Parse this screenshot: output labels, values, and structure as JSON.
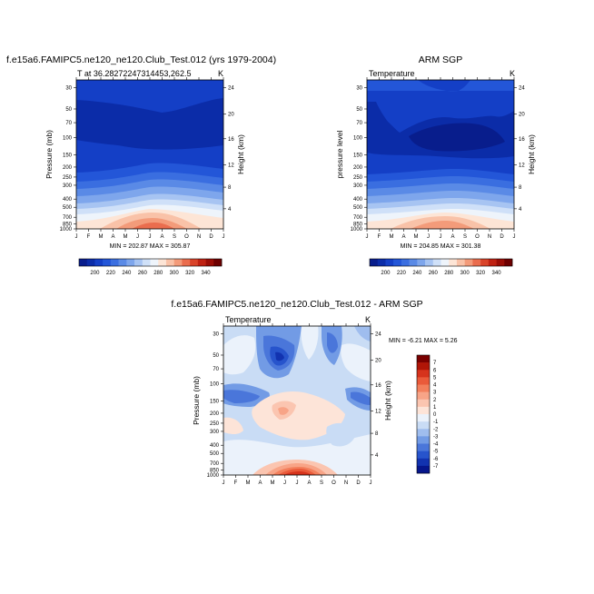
{
  "chart_data": [
    {
      "type": "heatmap",
      "title": "f.e15a6.FAMIPC5.ne120_ne120.Club_Test.012 (yrs 1979-2004)",
      "subtitle_left": "T at 36.28272247314453,262.5",
      "subtitle_right": "K",
      "xlabel": "",
      "ylabel": "Pressure (mb)",
      "ylabel_right": "Height (km)",
      "months": [
        "J",
        "F",
        "M",
        "A",
        "M",
        "J",
        "J",
        "A",
        "S",
        "O",
        "N",
        "D",
        "J"
      ],
      "pressure_ticks": [
        "30",
        "50",
        "70",
        "100",
        "150",
        "200",
        "250",
        "300",
        "400",
        "500",
        "700",
        "850",
        "1000"
      ],
      "height_ticks": [
        "24",
        "20",
        "16",
        "12",
        "8",
        "4"
      ],
      "stats": "MIN = 202.87 MAX = 305.87",
      "min": 202.87,
      "max": 305.87
    },
    {
      "type": "heatmap",
      "title": "ARM SGP",
      "subtitle_left": "Temperature",
      "subtitle_right": "K",
      "xlabel": "",
      "ylabel": "pressure level",
      "ylabel_right": "Height (km)",
      "months": [
        "J",
        "F",
        "M",
        "A",
        "M",
        "J",
        "J",
        "A",
        "S",
        "O",
        "N",
        "D",
        "J"
      ],
      "pressure_ticks": [
        "30",
        "50",
        "70",
        "100",
        "150",
        "200",
        "250",
        "300",
        "400",
        "500",
        "700",
        "850",
        "1000"
      ],
      "height_ticks": [
        "24",
        "20",
        "16",
        "12",
        "8",
        "4"
      ],
      "stats": "MIN = 204.85 MAX = 301.38",
      "min": 204.85,
      "max": 301.38
    },
    {
      "type": "heatmap",
      "title": "f.e15a6.FAMIPC5.ne120_ne120.Club_Test.012 - ARM SGP",
      "subtitle_left": "Temperature",
      "subtitle_right": "K",
      "xlabel": "",
      "ylabel": "Pressure (mb)",
      "ylabel_right": "Height (km)",
      "months": [
        "J",
        "F",
        "M",
        "A",
        "M",
        "J",
        "J",
        "A",
        "S",
        "O",
        "N",
        "D",
        "J"
      ],
      "pressure_ticks": [
        "30",
        "50",
        "70",
        "100",
        "150",
        "200",
        "250",
        "300",
        "400",
        "500",
        "700",
        "850",
        "1000"
      ],
      "height_ticks": [
        "24",
        "20",
        "16",
        "12",
        "8",
        "4"
      ],
      "stats": "MIN = -6.21 MAX =  5.26",
      "min": -6.21,
      "max": 5.26
    }
  ],
  "colorbar_top": {
    "labels": [
      "200",
      "220",
      "240",
      "260",
      "280",
      "300",
      "320",
      "340"
    ],
    "colors": [
      "#081d8c",
      "#0b2ca8",
      "#143fc6",
      "#2356d8",
      "#3a6ee0",
      "#5a8ae6",
      "#7ea6ec",
      "#a7c4f2",
      "#cfe0f8",
      "#eef4fb",
      "#fde5d6",
      "#f9c2a8",
      "#f39b7a",
      "#ea6d4e",
      "#d94329",
      "#bf2112",
      "#9a0d06",
      "#6e0000"
    ]
  },
  "colorbar_diff": {
    "labels": [
      "7",
      "6",
      "5",
      "4",
      "3",
      "2",
      "1",
      "0",
      "-1",
      "-2",
      "-3",
      "-4",
      "-5",
      "-6",
      "-7"
    ],
    "colors": [
      "#7a0000",
      "#b01507",
      "#d6331c",
      "#ea5a3a",
      "#f37f5c",
      "#f8a487",
      "#fbc5b0",
      "#fde4d8",
      "#ebf2fb",
      "#c9dcf5",
      "#9fbdee",
      "#729be5",
      "#4a76da",
      "#2754cc",
      "#1233b0",
      "#06168c"
    ]
  }
}
